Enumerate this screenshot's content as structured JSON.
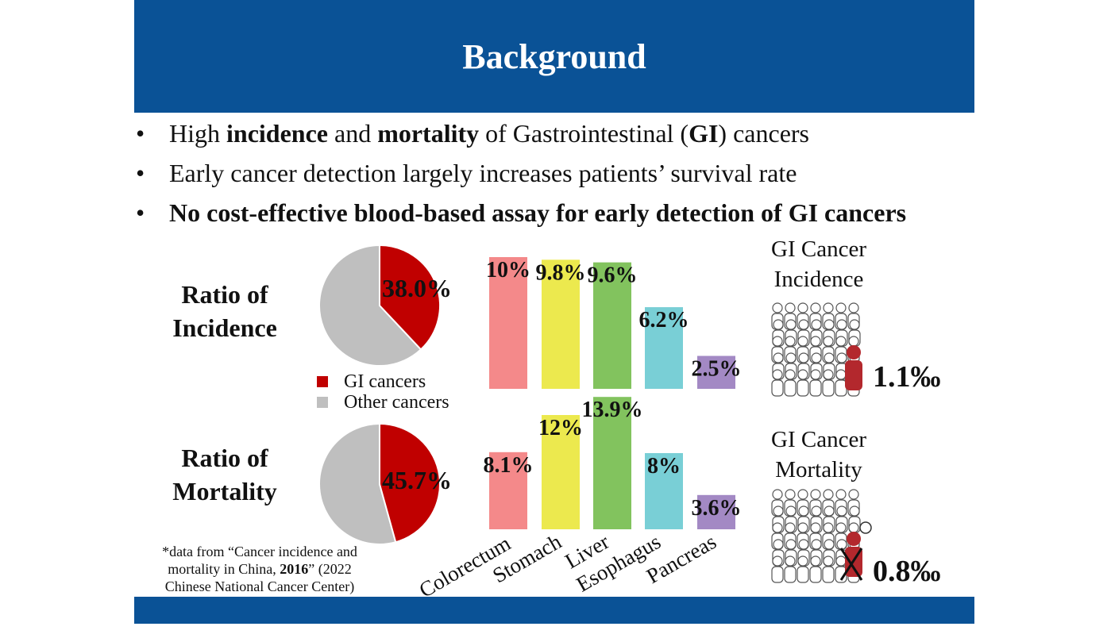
{
  "title": "Background",
  "bullets": [
    {
      "parts": [
        {
          "t": "High ",
          "b": false
        },
        {
          "t": "incidence",
          "b": true
        },
        {
          "t": " and ",
          "b": false
        },
        {
          "t": "mortality",
          "b": true
        },
        {
          "t": " of Gastrointestinal (",
          "b": false
        },
        {
          "t": "GI",
          "b": true
        },
        {
          "t": ") cancers",
          "b": false
        }
      ]
    },
    {
      "parts": [
        {
          "t": "Early cancer detection largely increases patients’ survival rate",
          "b": false
        }
      ]
    },
    {
      "parts": [
        {
          "t": "No cost-effective blood-based assay for early detection of GI cancers",
          "b": true
        }
      ]
    }
  ],
  "bullet_char": "•",
  "incidence": {
    "label_line1": "Ratio of",
    "label_line2": "Incidence",
    "pie_pct": "38.0%",
    "pie_value": 38.0,
    "gi_title_line1": "GI Cancer",
    "gi_title_line2": "Incidence",
    "permil": "1.1‰"
  },
  "mortality": {
    "label_line1": "Ratio of",
    "label_line2": "Mortality",
    "pie_pct": "45.7%",
    "pie_value": 45.7,
    "gi_title_line1": "GI Cancer",
    "gi_title_line2": "Mortality",
    "permil": "0.8‰"
  },
  "legend": {
    "gi": "GI cancers",
    "other": "Other cancers"
  },
  "colors": {
    "header": "#0a5296",
    "gi": "#c00000",
    "other": "#bfbfbf",
    "colorectum": "#f4898a",
    "stomach": "#ece94e",
    "liver": "#82c35e",
    "esophagus": "#79cfd6",
    "pancreas": "#a389c4"
  },
  "chart_data": [
    {
      "type": "bar",
      "categories": [
        "Colorectum",
        "Stomach",
        "Liver",
        "Esophagus",
        "Pancreas"
      ],
      "values": [
        10,
        9.8,
        9.6,
        6.2,
        2.5
      ],
      "labels": [
        "10%",
        "9.8%",
        "9.6%",
        "6.2%",
        "2.5%"
      ]
    },
    {
      "type": "bar",
      "categories": [
        "Colorectum",
        "Stomach",
        "Liver",
        "Esophagus",
        "Pancreas"
      ],
      "values": [
        8.1,
        12,
        13.9,
        8,
        3.6
      ],
      "labels": [
        "8.1%",
        "12%",
        "13.9%",
        "8%",
        "3.6%"
      ]
    }
  ],
  "footnote": {
    "line1": "*data from “Cancer incidence and",
    "line2_a": "mortality in China, ",
    "line2_b": "2016",
    "line2_c": "” (2022",
    "line3": "Chinese National Cancer Center)"
  }
}
